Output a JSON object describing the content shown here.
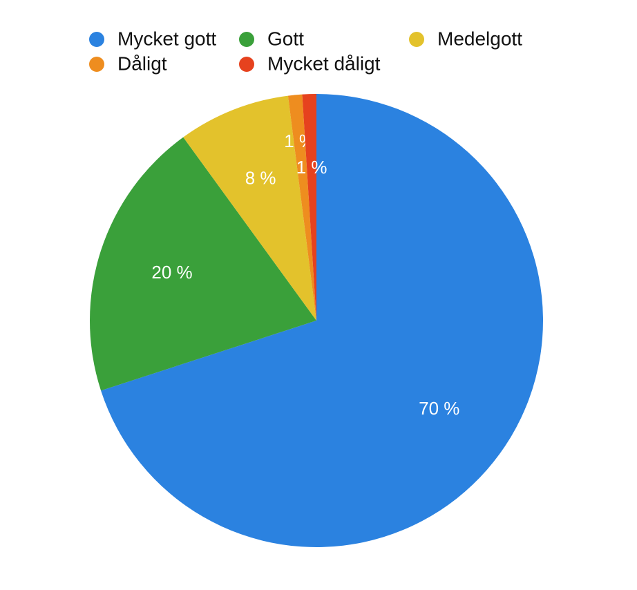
{
  "chart_data": {
    "type": "pie",
    "categories": [
      "Mycket gott",
      "Gott",
      "Medelgott",
      "Dåligt",
      "Mycket dåligt"
    ],
    "values": [
      70,
      20,
      8,
      1,
      1
    ],
    "value_labels": [
      "70 %",
      "20 %",
      "8 %",
      "1 %",
      "1 %"
    ],
    "colors": [
      "#2b82e0",
      "#3aa03a",
      "#e3c22c",
      "#ee8d1f",
      "#e6421e"
    ]
  }
}
